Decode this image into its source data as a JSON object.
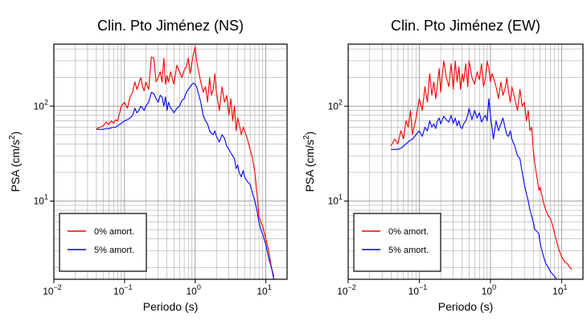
{
  "chart_data": [
    {
      "type": "line",
      "title": "Clin. Pto Jiménez (NS)",
      "xlabel": "Periodo (s)",
      "ylabel_main": "PSA (cm/s",
      "ylabel_sup": "2",
      "ylabel_close": ")",
      "xscale": "log",
      "yscale": "log",
      "xlim": [
        0.01,
        20
      ],
      "ylim": [
        1.5,
        450
      ],
      "grid": true,
      "legend_position": "bottom-left",
      "xticks": [
        {
          "value": 0.01,
          "base": "10",
          "exp": "−2"
        },
        {
          "value": 0.1,
          "base": "10",
          "exp": "−1"
        },
        {
          "value": 1,
          "base": "10",
          "exp": "0"
        },
        {
          "value": 10,
          "base": "10",
          "exp": "1"
        }
      ],
      "yticks": [
        {
          "value": 10,
          "base": "10",
          "exp": "1"
        },
        {
          "value": 100,
          "base": "10",
          "exp": "2"
        }
      ],
      "series": [
        {
          "name": "0% amort.",
          "color": "#ff0000",
          "x": [
            0.04,
            0.045,
            0.05,
            0.055,
            0.06,
            0.065,
            0.07,
            0.075,
            0.08,
            0.09,
            0.1,
            0.11,
            0.12,
            0.13,
            0.14,
            0.15,
            0.16,
            0.17,
            0.18,
            0.19,
            0.2,
            0.22,
            0.24,
            0.26,
            0.28,
            0.3,
            0.32,
            0.34,
            0.36,
            0.38,
            0.4,
            0.42,
            0.45,
            0.48,
            0.5,
            0.55,
            0.6,
            0.65,
            0.7,
            0.75,
            0.8,
            0.85,
            0.9,
            0.95,
            1.0,
            1.05,
            1.1,
            1.2,
            1.3,
            1.4,
            1.5,
            1.6,
            1.7,
            1.8,
            1.9,
            2.0,
            2.2,
            2.4,
            2.6,
            2.8,
            3.0,
            3.2,
            3.4,
            3.6,
            3.8,
            4.0,
            4.2,
            4.5,
            4.8,
            5.0,
            5.5,
            6.0,
            6.5,
            7.0,
            7.5,
            8.0,
            8.5,
            9.0,
            10.0,
            11.0,
            12.0,
            13.0
          ],
          "y": [
            58,
            60,
            62,
            68,
            64,
            70,
            66,
            72,
            70,
            100,
            110,
            95,
            125,
            140,
            180,
            150,
            175,
            200,
            160,
            145,
            180,
            150,
            330,
            320,
            180,
            200,
            230,
            180,
            320,
            170,
            210,
            180,
            230,
            190,
            170,
            270,
            230,
            200,
            240,
            260,
            320,
            220,
            290,
            360,
            420,
            300,
            250,
            180,
            140,
            160,
            110,
            200,
            130,
            150,
            220,
            140,
            90,
            160,
            110,
            130,
            80,
            120,
            70,
            100,
            55,
            75,
            65,
            50,
            60,
            55,
            45,
            35,
            28,
            20,
            12,
            7,
            6,
            5.5,
            4,
            3,
            2,
            1.6
          ]
        },
        {
          "name": "5% amort.",
          "color": "#0000ff",
          "x": [
            0.04,
            0.045,
            0.05,
            0.055,
            0.06,
            0.065,
            0.07,
            0.075,
            0.08,
            0.09,
            0.1,
            0.11,
            0.12,
            0.13,
            0.14,
            0.15,
            0.16,
            0.17,
            0.18,
            0.19,
            0.2,
            0.22,
            0.24,
            0.26,
            0.28,
            0.3,
            0.32,
            0.34,
            0.36,
            0.38,
            0.4,
            0.42,
            0.45,
            0.48,
            0.5,
            0.55,
            0.6,
            0.65,
            0.7,
            0.75,
            0.8,
            0.85,
            0.9,
            0.95,
            1.0,
            1.05,
            1.1,
            1.2,
            1.3,
            1.4,
            1.5,
            1.6,
            1.7,
            1.8,
            1.9,
            2.0,
            2.2,
            2.4,
            2.6,
            2.8,
            3.0,
            3.2,
            3.4,
            3.6,
            3.8,
            4.0,
            4.2,
            4.5,
            4.8,
            5.0,
            5.5,
            6.0,
            6.5,
            7.0,
            7.5,
            8.0,
            8.5,
            9.0,
            10.0,
            11.0,
            12.0,
            13.0
          ],
          "y": [
            57,
            57,
            57,
            58,
            58,
            59,
            60,
            60,
            62,
            66,
            70,
            72,
            75,
            80,
            95,
            85,
            90,
            100,
            95,
            90,
            100,
            110,
            140,
            135,
            120,
            110,
            130,
            125,
            100,
            125,
            90,
            110,
            95,
            90,
            85,
            95,
            100,
            115,
            120,
            140,
            150,
            160,
            170,
            175,
            170,
            160,
            140,
            110,
            80,
            70,
            65,
            55,
            52,
            50,
            55,
            48,
            42,
            50,
            46,
            38,
            35,
            32,
            30,
            28,
            22,
            24,
            20,
            18,
            21,
            18,
            16,
            15,
            12,
            10,
            8,
            6,
            5,
            4.5,
            3.5,
            2.5,
            2,
            1.5
          ]
        }
      ]
    },
    {
      "type": "line",
      "title": "Clin. Pto Jiménez (EW)",
      "xlabel": "Periodo (s)",
      "ylabel_main": "PSA (cm/s",
      "ylabel_sup": "2",
      "ylabel_close": ")",
      "xscale": "log",
      "yscale": "log",
      "xlim": [
        0.01,
        20
      ],
      "ylim": [
        1.5,
        450
      ],
      "grid": true,
      "legend_position": "bottom-left",
      "xticks": [
        {
          "value": 0.01,
          "base": "10",
          "exp": "−2"
        },
        {
          "value": 0.1,
          "base": "10",
          "exp": "−1"
        },
        {
          "value": 1,
          "base": "10",
          "exp": "0"
        },
        {
          "value": 10,
          "base": "10",
          "exp": "1"
        }
      ],
      "yticks": [
        {
          "value": 10,
          "base": "10",
          "exp": "1"
        },
        {
          "value": 100,
          "base": "10",
          "exp": "2"
        }
      ],
      "series": [
        {
          "name": "0% amort.",
          "color": "#ff0000",
          "x": [
            0.04,
            0.045,
            0.05,
            0.055,
            0.06,
            0.065,
            0.07,
            0.075,
            0.08,
            0.09,
            0.1,
            0.11,
            0.12,
            0.13,
            0.14,
            0.15,
            0.16,
            0.17,
            0.18,
            0.19,
            0.2,
            0.22,
            0.24,
            0.26,
            0.28,
            0.3,
            0.32,
            0.34,
            0.36,
            0.38,
            0.4,
            0.42,
            0.45,
            0.48,
            0.5,
            0.55,
            0.6,
            0.65,
            0.7,
            0.75,
            0.8,
            0.85,
            0.9,
            0.95,
            1.0,
            1.05,
            1.1,
            1.2,
            1.3,
            1.4,
            1.5,
            1.6,
            1.7,
            1.8,
            1.9,
            2.0,
            2.2,
            2.4,
            2.6,
            2.8,
            3.0,
            3.2,
            3.4,
            3.6,
            3.8,
            4.0,
            4.2,
            4.5,
            4.8,
            5.0,
            5.5,
            6.0,
            6.5,
            7.0,
            7.5,
            8.0,
            8.5,
            9.0,
            10.0,
            11.0,
            12.0,
            13.0,
            14.0
          ],
          "y": [
            38,
            45,
            40,
            55,
            45,
            70,
            60,
            90,
            50,
            75,
            120,
            90,
            160,
            110,
            220,
            130,
            180,
            120,
            170,
            250,
            140,
            300,
            200,
            160,
            280,
            150,
            300,
            180,
            260,
            150,
            220,
            180,
            280,
            160,
            300,
            200,
            170,
            230,
            190,
            280,
            160,
            200,
            300,
            250,
            180,
            220,
            200,
            160,
            120,
            180,
            130,
            150,
            200,
            140,
            110,
            160,
            120,
            90,
            150,
            100,
            110,
            70,
            90,
            55,
            60,
            35,
            25,
            18,
            13,
            14,
            10,
            8,
            7,
            6.5,
            5.5,
            4.5,
            3.8,
            3.2,
            2.6,
            2.3,
            2.2,
            2,
            1.9
          ]
        },
        {
          "name": "5% amort.",
          "color": "#0000ff",
          "x": [
            0.04,
            0.045,
            0.05,
            0.055,
            0.06,
            0.065,
            0.07,
            0.075,
            0.08,
            0.09,
            0.1,
            0.11,
            0.12,
            0.13,
            0.14,
            0.15,
            0.16,
            0.17,
            0.18,
            0.19,
            0.2,
            0.22,
            0.24,
            0.26,
            0.28,
            0.3,
            0.32,
            0.34,
            0.36,
            0.38,
            0.4,
            0.42,
            0.45,
            0.48,
            0.5,
            0.55,
            0.6,
            0.65,
            0.7,
            0.75,
            0.8,
            0.85,
            0.9,
            0.95,
            1.0,
            1.05,
            1.1,
            1.2,
            1.3,
            1.4,
            1.5,
            1.6,
            1.7,
            1.8,
            1.9,
            2.0,
            2.2,
            2.4,
            2.6,
            2.8,
            3.0,
            3.2,
            3.4,
            3.6,
            3.8,
            4.0,
            4.2,
            4.5,
            4.8,
            5.0,
            5.5,
            6.0,
            6.5,
            7.0,
            7.5,
            8.0,
            8.5,
            9.0,
            10.0,
            11.0,
            12.0,
            13.0,
            14.0
          ],
          "y": [
            35,
            35,
            35,
            36,
            38,
            40,
            42,
            44,
            45,
            50,
            55,
            48,
            60,
            55,
            70,
            60,
            65,
            58,
            70,
            75,
            65,
            78,
            72,
            68,
            80,
            66,
            75,
            62,
            70,
            60,
            58,
            65,
            70,
            80,
            95,
            72,
            90,
            75,
            85,
            68,
            75,
            80,
            70,
            120,
            80,
            60,
            45,
            70,
            55,
            65,
            75,
            60,
            50,
            48,
            55,
            45,
            38,
            30,
            28,
            20,
            15,
            12,
            10,
            8,
            7,
            6,
            5,
            4.8,
            4.5,
            3.6,
            2.7,
            2.2,
            2,
            1.8,
            1.7,
            1.6,
            1.5,
            1.5,
            1.5,
            1.5,
            1.5,
            1.5,
            1.5
          ]
        }
      ]
    }
  ]
}
